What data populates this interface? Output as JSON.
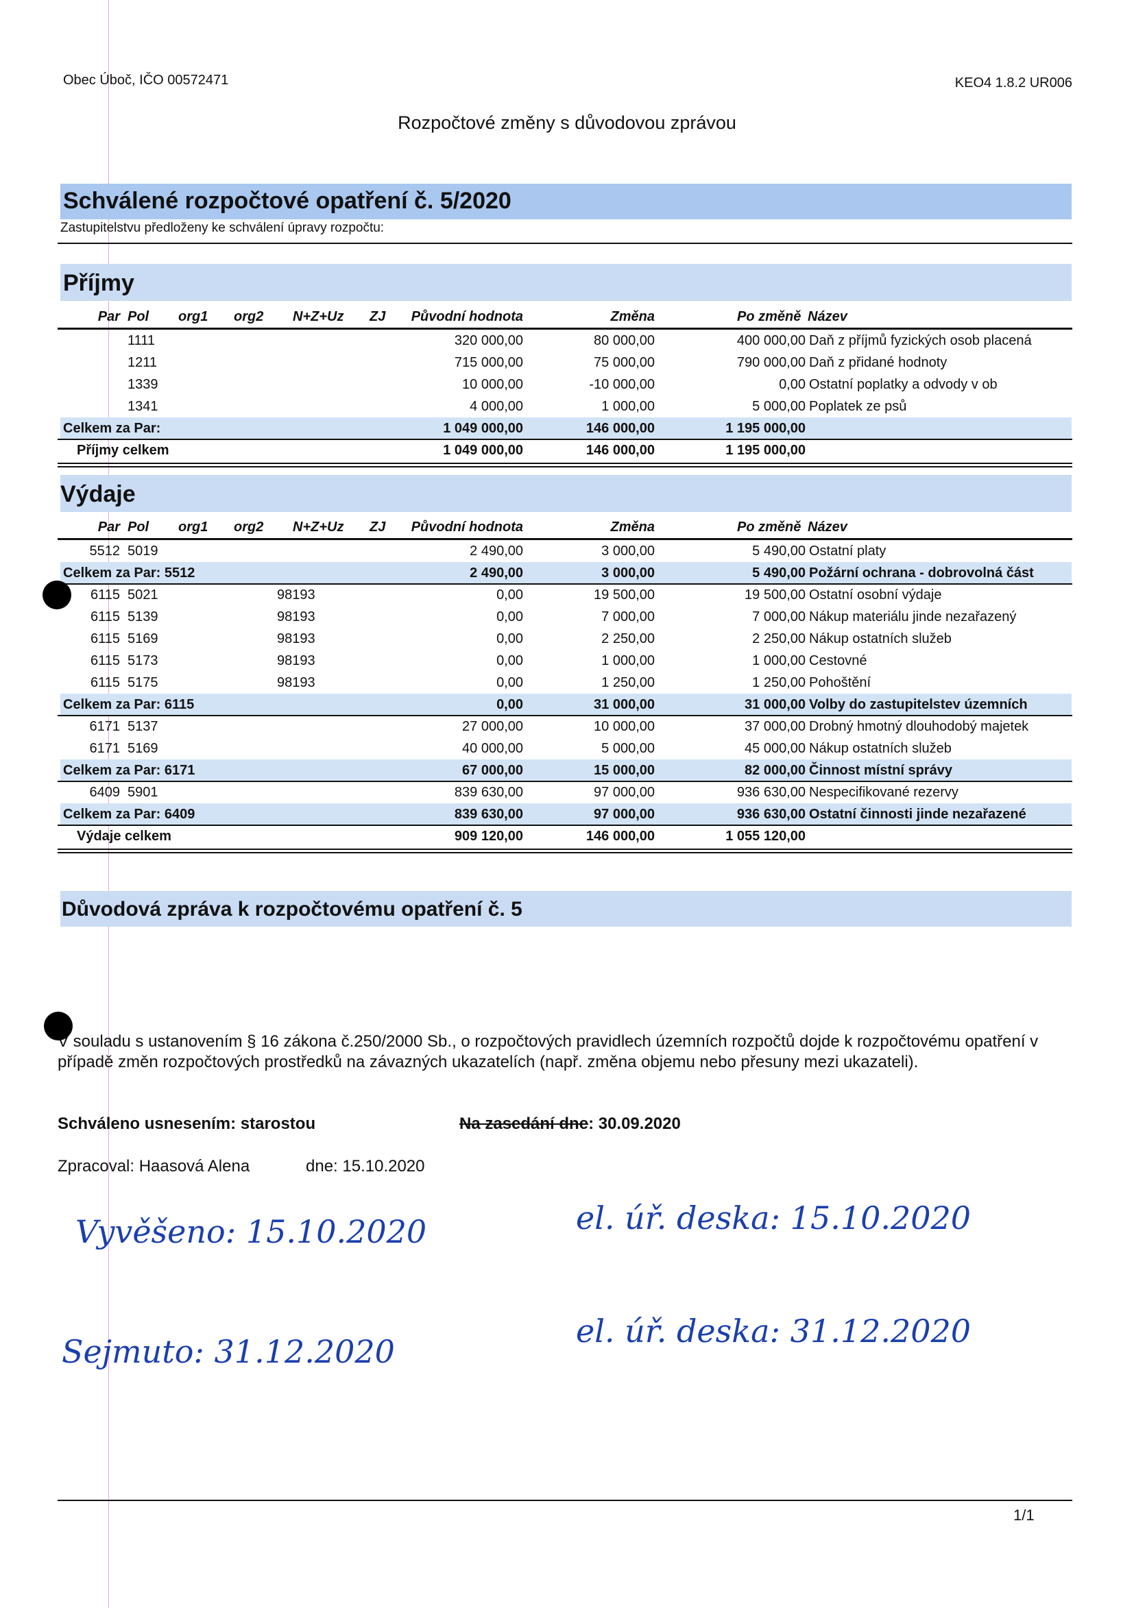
{
  "header": {
    "org": "Obec Úboč, IČO 00572471",
    "version": "KEO4 1.8.2 UR006",
    "title": "Rozpočtové změny s důvodovou zprávou"
  },
  "measure": {
    "title": "Schválené rozpočtové opatření  č. 5/2020",
    "subtitle": "Zastupitelstvu předloženy ke schválení úpravy rozpočtu:"
  },
  "columns": {
    "par": "Par",
    "pol": "Pol",
    "org1": "org1",
    "org2": "org2",
    "nzu": "N+Z+Uz",
    "zj": "ZJ",
    "orig": "Původní hodnota",
    "chg": "Změna",
    "after": "Po změně",
    "name": "Název"
  },
  "prijmy": {
    "title": "Příjmy",
    "rows": [
      {
        "type": "item",
        "par": "",
        "pol": "1111",
        "org2": "",
        "orig": "320 000,00",
        "chg": "80 000,00",
        "after": "400 000,00",
        "name": "Daň z příjmů fyzických osob placená"
      },
      {
        "type": "item",
        "par": "",
        "pol": "1211",
        "org2": "",
        "orig": "715 000,00",
        "chg": "75 000,00",
        "after": "790 000,00",
        "name": "Daň z přidané hodnoty"
      },
      {
        "type": "item",
        "par": "",
        "pol": "1339",
        "org2": "",
        "orig": "10 000,00",
        "chg": "-10 000,00",
        "after": "0,00",
        "name": "Ostatní poplatky a odvody v ob"
      },
      {
        "type": "item",
        "par": "",
        "pol": "1341",
        "org2": "",
        "orig": "4 000,00",
        "chg": "1 000,00",
        "after": "5 000,00",
        "name": "Poplatek ze psů"
      },
      {
        "type": "sum",
        "label": "Celkem za Par:",
        "orig": "1 049 000,00",
        "chg": "146 000,00",
        "after": "1 195 000,00",
        "name": ""
      },
      {
        "type": "total",
        "label": "Příjmy celkem",
        "orig": "1 049 000,00",
        "chg": "146 000,00",
        "after": "1 195 000,00",
        "name": ""
      }
    ]
  },
  "vydaje": {
    "title": "Výdaje",
    "rows": [
      {
        "type": "item",
        "par": "5512",
        "pol": "5019",
        "org2": "",
        "orig": "2 490,00",
        "chg": "3 000,00",
        "after": "5 490,00",
        "name": "Ostatní platy"
      },
      {
        "type": "sum",
        "label": "Celkem za Par: 5512",
        "orig": "2 490,00",
        "chg": "3 000,00",
        "after": "5 490,00",
        "name": "Požární ochrana - dobrovolná část"
      },
      {
        "type": "item",
        "par": "6115",
        "pol": "5021",
        "org2": "98193",
        "orig": "0,00",
        "chg": "19 500,00",
        "after": "19 500,00",
        "name": "Ostatní osobní výdaje"
      },
      {
        "type": "item",
        "par": "6115",
        "pol": "5139",
        "org2": "98193",
        "orig": "0,00",
        "chg": "7 000,00",
        "after": "7 000,00",
        "name": "Nákup materiálu jinde nezařazený"
      },
      {
        "type": "item",
        "par": "6115",
        "pol": "5169",
        "org2": "98193",
        "orig": "0,00",
        "chg": "2 250,00",
        "after": "2 250,00",
        "name": "Nákup ostatních služeb"
      },
      {
        "type": "item",
        "par": "6115",
        "pol": "5173",
        "org2": "98193",
        "orig": "0,00",
        "chg": "1 000,00",
        "after": "1 000,00",
        "name": "Cestovné"
      },
      {
        "type": "item",
        "par": "6115",
        "pol": "5175",
        "org2": "98193",
        "orig": "0,00",
        "chg": "1 250,00",
        "after": "1 250,00",
        "name": "Pohoštění"
      },
      {
        "type": "sum",
        "label": "Celkem za Par: 6115",
        "orig": "0,00",
        "chg": "31 000,00",
        "after": "31 000,00",
        "name": "Volby do zastupitelstev územních"
      },
      {
        "type": "item",
        "par": "6171",
        "pol": "5137",
        "org2": "",
        "orig": "27 000,00",
        "chg": "10 000,00",
        "after": "37 000,00",
        "name": "Drobný hmotný dlouhodobý majetek"
      },
      {
        "type": "item",
        "par": "6171",
        "pol": "5169",
        "org2": "",
        "orig": "40 000,00",
        "chg": "5 000,00",
        "after": "45 000,00",
        "name": "Nákup ostatních služeb"
      },
      {
        "type": "sum",
        "label": "Celkem za Par: 6171",
        "orig": "67 000,00",
        "chg": "15 000,00",
        "after": "82 000,00",
        "name": "Činnost místní správy"
      },
      {
        "type": "item",
        "par": "6409",
        "pol": "5901",
        "org2": "",
        "orig": "839 630,00",
        "chg": "97 000,00",
        "after": "936 630,00",
        "name": "Nespecifikované rezervy"
      },
      {
        "type": "sum",
        "label": "Celkem za Par: 6409",
        "orig": "839 630,00",
        "chg": "97 000,00",
        "after": "936 630,00",
        "name": "Ostatní činnosti jinde nezařazené"
      },
      {
        "type": "total",
        "label": "Výdaje celkem",
        "orig": "909 120,00",
        "chg": "146 000,00",
        "after": "1 055 120,00",
        "name": ""
      }
    ]
  },
  "report": {
    "title": "Důvodová zpráva k rozpočtovému opatření č. 5",
    "text": "V souladu s ustanovením § 16 zákona č.250/2000 Sb., o rozpočtových pravidlech územních rozpočtů dojde k rozpočtovému opatření v případě změn rozpočtových prostředků na závazných ukazatelích (např. změna objemu nebo přesuny mezi ukazateli).",
    "approved_label": "Schváleno usnesením: starostou",
    "meeting_label": "Na zasedání dne",
    "meeting_date": ": 30.09.2020",
    "processed": "Zpracoval: Haasová Alena",
    "date": "dne: 15.10.2020"
  },
  "handwriting": {
    "posted": "Vyvěšeno: 15.10.2020",
    "posted_board": "el. úř. deska: 15.10.2020",
    "removed": "Sejmuto: 31.12.2020",
    "removed_board": "el. úř. deska: 31.12.2020"
  },
  "footer": {
    "page": "1/1"
  }
}
